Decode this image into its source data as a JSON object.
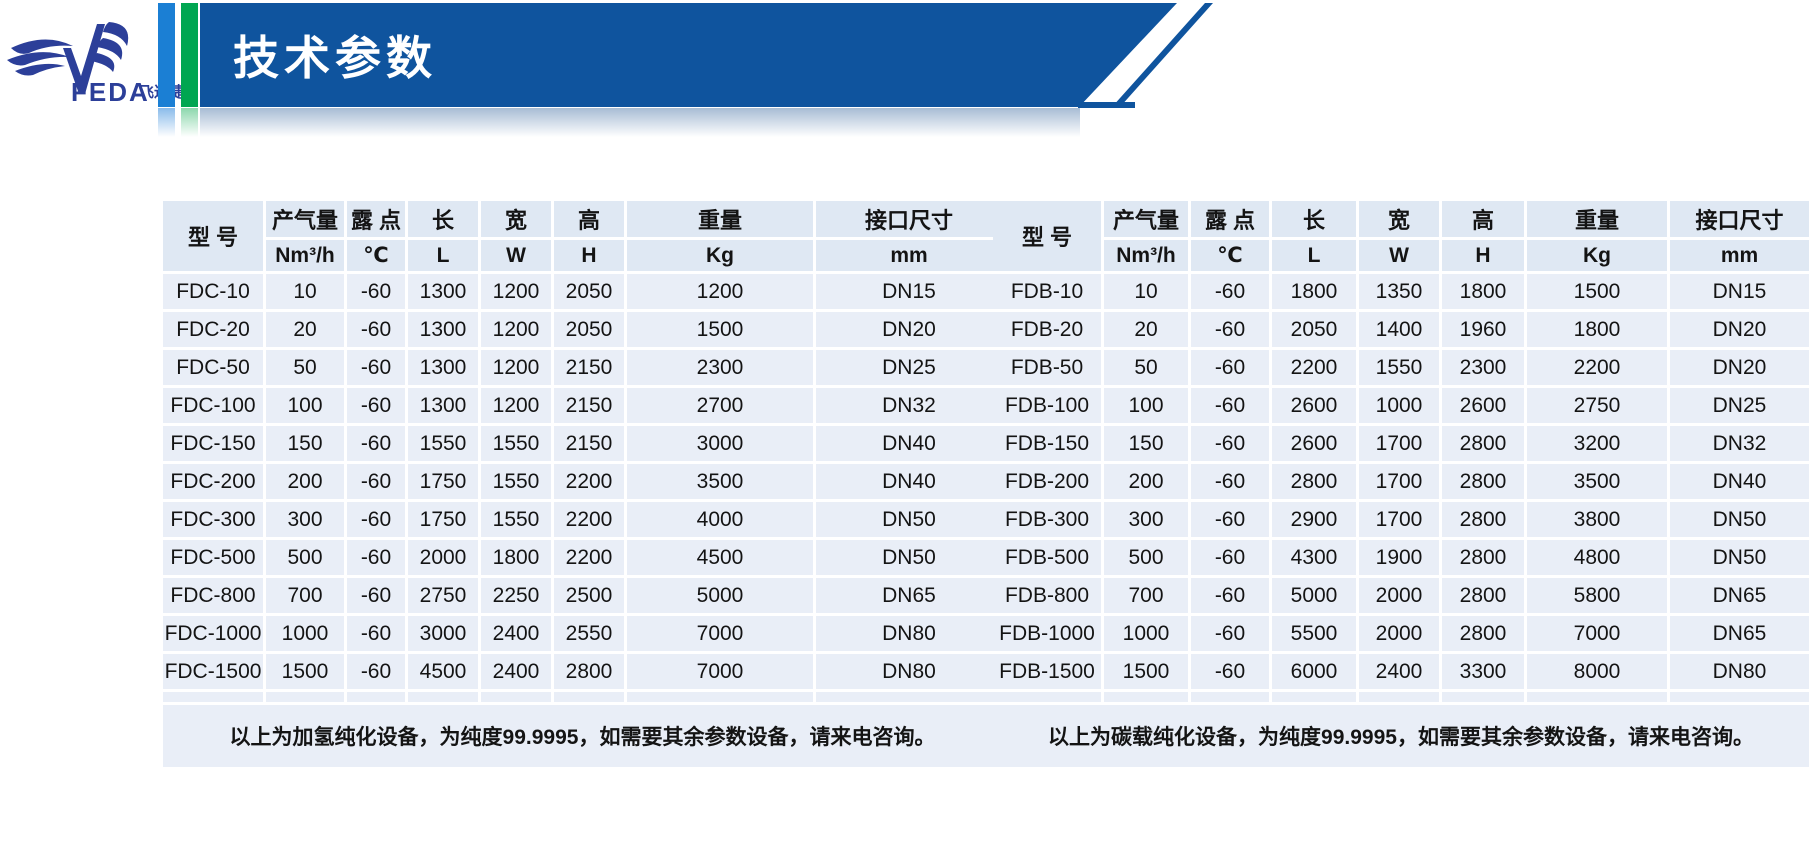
{
  "logo": {
    "brand": "FEDA",
    "suffix": "飞达捷能"
  },
  "banner": {
    "title": "技术参数"
  },
  "colors": {
    "banner_blue": "#0f549e",
    "bar_blue": "#1b7fd4",
    "bar_green": "#00a651",
    "logo_blue": "#2c3f99",
    "cell_bg": "#e9eef7",
    "header_bg": "#dfe8f3"
  },
  "tables": [
    {
      "header_row1": [
        "型 号",
        "产气量",
        "露 点",
        "长",
        "宽",
        "高",
        "重量",
        "接口尺寸"
      ],
      "header_row2": [
        "Nm³/h",
        "℃",
        "L",
        "W",
        "H",
        "Kg",
        "mm"
      ],
      "rows": [
        [
          "FDC-10",
          "10",
          "-60",
          "1300",
          "1200",
          "2050",
          "1200",
          "DN15"
        ],
        [
          "FDC-20",
          "20",
          "-60",
          "1300",
          "1200",
          "2050",
          "1500",
          "DN20"
        ],
        [
          "FDC-50",
          "50",
          "-60",
          "1300",
          "1200",
          "2150",
          "2300",
          "DN25"
        ],
        [
          "FDC-100",
          "100",
          "-60",
          "1300",
          "1200",
          "2150",
          "2700",
          "DN32"
        ],
        [
          "FDC-150",
          "150",
          "-60",
          "1550",
          "1550",
          "2150",
          "3000",
          "DN40"
        ],
        [
          "FDC-200",
          "200",
          "-60",
          "1750",
          "1550",
          "2200",
          "3500",
          "DN40"
        ],
        [
          "FDC-300",
          "300",
          "-60",
          "1750",
          "1550",
          "2200",
          "4000",
          "DN50"
        ],
        [
          "FDC-500",
          "500",
          "-60",
          "2000",
          "1800",
          "2200",
          "4500",
          "DN50"
        ],
        [
          "FDC-800",
          "700",
          "-60",
          "2750",
          "2250",
          "2500",
          "5000",
          "DN65"
        ],
        [
          "FDC-1000",
          "1000",
          "-60",
          "3000",
          "2400",
          "2550",
          "7000",
          "DN80"
        ],
        [
          "FDC-1500",
          "1500",
          "-60",
          "4500",
          "2400",
          "2800",
          "7000",
          "DN80"
        ]
      ],
      "note": "以上为加氢纯化设备，为纯度99.9995，如需要其余参数设备，请来电咨询。"
    },
    {
      "header_row1": [
        "型 号",
        "产气量",
        "露 点",
        "长",
        "宽",
        "高",
        "重量",
        "接口尺寸"
      ],
      "header_row2": [
        "Nm³/h",
        "℃",
        "L",
        "W",
        "H",
        "Kg",
        "mm"
      ],
      "rows": [
        [
          "FDB-10",
          "10",
          "-60",
          "1800",
          "1350",
          "1800",
          "1500",
          "DN15"
        ],
        [
          "FDB-20",
          "20",
          "-60",
          "2050",
          "1400",
          "1960",
          "1800",
          "DN20"
        ],
        [
          "FDB-50",
          "50",
          "-60",
          "2200",
          "1550",
          "2300",
          "2200",
          "DN20"
        ],
        [
          "FDB-100",
          "100",
          "-60",
          "2600",
          "1000",
          "2600",
          "2750",
          "DN25"
        ],
        [
          "FDB-150",
          "150",
          "-60",
          "2600",
          "1700",
          "2800",
          "3200",
          "DN32"
        ],
        [
          "FDB-200",
          "200",
          "-60",
          "2800",
          "1700",
          "2800",
          "3500",
          "DN40"
        ],
        [
          "FDB-300",
          "300",
          "-60",
          "2900",
          "1700",
          "2800",
          "3800",
          "DN50"
        ],
        [
          "FDB-500",
          "500",
          "-60",
          "4300",
          "1900",
          "2800",
          "4800",
          "DN50"
        ],
        [
          "FDB-800",
          "700",
          "-60",
          "5000",
          "2000",
          "2800",
          "5800",
          "DN65"
        ],
        [
          "FDB-1000",
          "1000",
          "-60",
          "5500",
          "2000",
          "2800",
          "7000",
          "DN65"
        ],
        [
          "FDB-1500",
          "1500",
          "-60",
          "6000",
          "2400",
          "3300",
          "8000",
          "DN80"
        ]
      ],
      "note": "以上为碳载纯化设备，为纯度99.9995，如需要其余参数设备，请来电咨询。"
    }
  ]
}
